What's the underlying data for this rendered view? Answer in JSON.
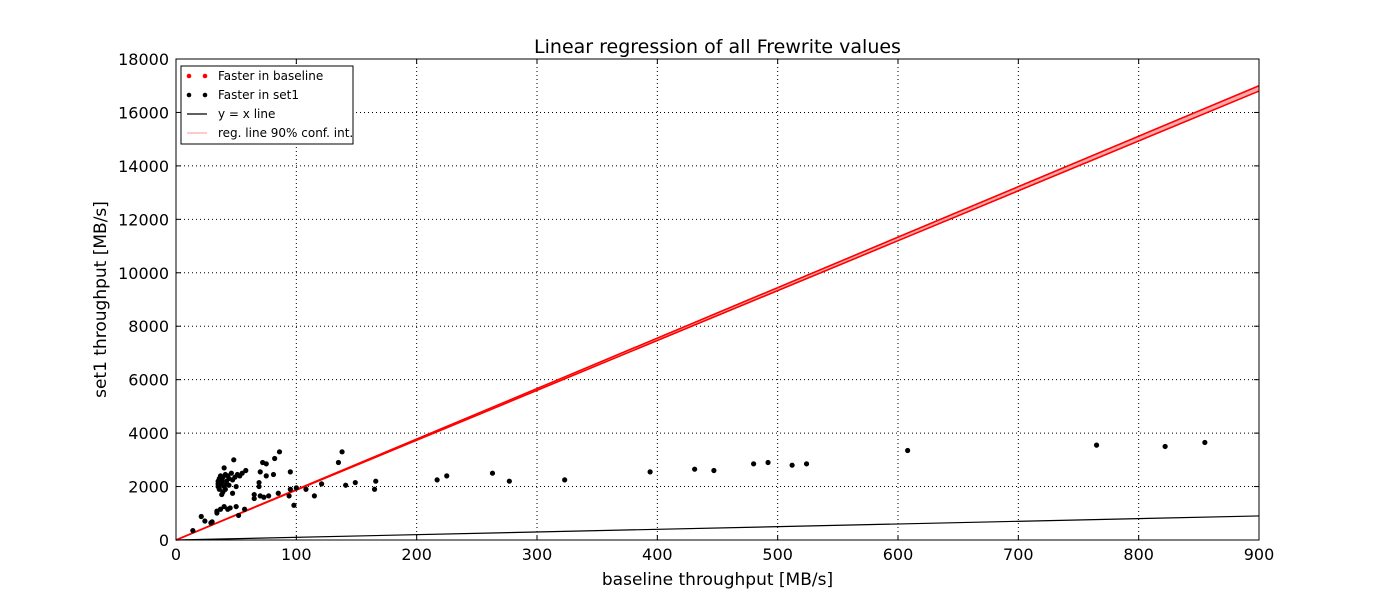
{
  "chart_data": {
    "type": "scatter",
    "title": "Linear regression of all Frewrite values",
    "xlabel": "baseline throughput [MB/s]",
    "ylabel": "set1 throughput [MB/s]",
    "xlim": [
      0,
      900
    ],
    "ylim": [
      0,
      18000
    ],
    "xticks": [
      "0",
      "100",
      "200",
      "300",
      "400",
      "500",
      "600",
      "700",
      "800",
      "900"
    ],
    "yticks": [
      "0",
      "2000",
      "4000",
      "6000",
      "8000",
      "10000",
      "12000",
      "14000",
      "16000",
      "18000"
    ],
    "grid": true,
    "grid_style": "dotted",
    "legend_position": "top-left",
    "legend": [
      {
        "label": "Faster in baseline",
        "marker": "dot",
        "color": "#ff0000"
      },
      {
        "label": "Faster in set1",
        "marker": "dot",
        "color": "#000000"
      },
      {
        "label": "y = x line",
        "marker": "line",
        "color": "#000000"
      },
      {
        "label": "reg. line 90% conf. int.",
        "marker": "line",
        "color": "#ffaaaa"
      }
    ],
    "series": [
      {
        "name": "Faster in baseline",
        "color": "#ff0000",
        "points": []
      },
      {
        "name": "Faster in set1",
        "color": "#000000",
        "points": [
          [
            14,
            350
          ],
          [
            21,
            880
          ],
          [
            24,
            710
          ],
          [
            29,
            640
          ],
          [
            30,
            680
          ],
          [
            34,
            1010
          ],
          [
            34,
            1080
          ],
          [
            35,
            2000
          ],
          [
            35,
            2100
          ],
          [
            35,
            2200
          ],
          [
            36,
            2300
          ],
          [
            36,
            1900
          ],
          [
            37,
            1150
          ],
          [
            37,
            2400
          ],
          [
            37,
            2050
          ],
          [
            38,
            1700
          ],
          [
            38,
            2150
          ],
          [
            38,
            2250
          ],
          [
            39,
            1800
          ],
          [
            39,
            2350
          ],
          [
            40,
            1250
          ],
          [
            40,
            2700
          ],
          [
            40,
            2000
          ],
          [
            41,
            2450
          ],
          [
            41,
            1900
          ],
          [
            42,
            2100
          ],
          [
            42,
            2200
          ],
          [
            43,
            1150
          ],
          [
            43,
            2400
          ],
          [
            44,
            2300
          ],
          [
            44,
            2050
          ],
          [
            45,
            1200
          ],
          [
            46,
            2500
          ],
          [
            47,
            1750
          ],
          [
            47,
            2250
          ],
          [
            48,
            3000
          ],
          [
            49,
            2350
          ],
          [
            50,
            1250
          ],
          [
            50,
            2000
          ],
          [
            51,
            2450
          ],
          [
            52,
            920
          ],
          [
            53,
            2400
          ],
          [
            55,
            2500
          ],
          [
            57,
            1150
          ],
          [
            58,
            2600
          ],
          [
            65,
            1550
          ],
          [
            65,
            1700
          ],
          [
            69,
            2000
          ],
          [
            69,
            2150
          ],
          [
            70,
            1650
          ],
          [
            70,
            2550
          ],
          [
            72,
            2900
          ],
          [
            73,
            1600
          ],
          [
            75,
            2400
          ],
          [
            75,
            2850
          ],
          [
            77,
            1650
          ],
          [
            81,
            2450
          ],
          [
            82,
            3050
          ],
          [
            85,
            1750
          ],
          [
            86,
            3300
          ],
          [
            94,
            1650
          ],
          [
            95,
            1900
          ],
          [
            95,
            2550
          ],
          [
            98,
            1300
          ],
          [
            100,
            1950
          ],
          [
            108,
            1900
          ],
          [
            115,
            1650
          ],
          [
            121,
            2100
          ],
          [
            135,
            2900
          ],
          [
            138,
            3300
          ],
          [
            141,
            2050
          ],
          [
            149,
            2150
          ],
          [
            165,
            1900
          ],
          [
            166,
            2200
          ],
          [
            217,
            2250
          ],
          [
            225,
            2400
          ],
          [
            263,
            2500
          ],
          [
            277,
            2200
          ],
          [
            323,
            2250
          ],
          [
            394,
            2550
          ],
          [
            431,
            2650
          ],
          [
            447,
            2600
          ],
          [
            480,
            2850
          ],
          [
            492,
            2900
          ],
          [
            512,
            2800
          ],
          [
            524,
            2850
          ],
          [
            608,
            3350
          ],
          [
            765,
            3550
          ],
          [
            822,
            3500
          ],
          [
            855,
            3650
          ]
        ]
      }
    ],
    "lines": [
      {
        "name": "y = x line",
        "color": "#000000",
        "x": [
          0,
          900
        ],
        "y": [
          0,
          900
        ]
      },
      {
        "name": "reg. line 90% conf. int.",
        "color": "#ff0000",
        "fill": "#ffaaaa",
        "x": [
          0,
          900
        ],
        "y_upper": [
          0,
          17000
        ],
        "y_lower": [
          0,
          16800
        ]
      }
    ]
  }
}
